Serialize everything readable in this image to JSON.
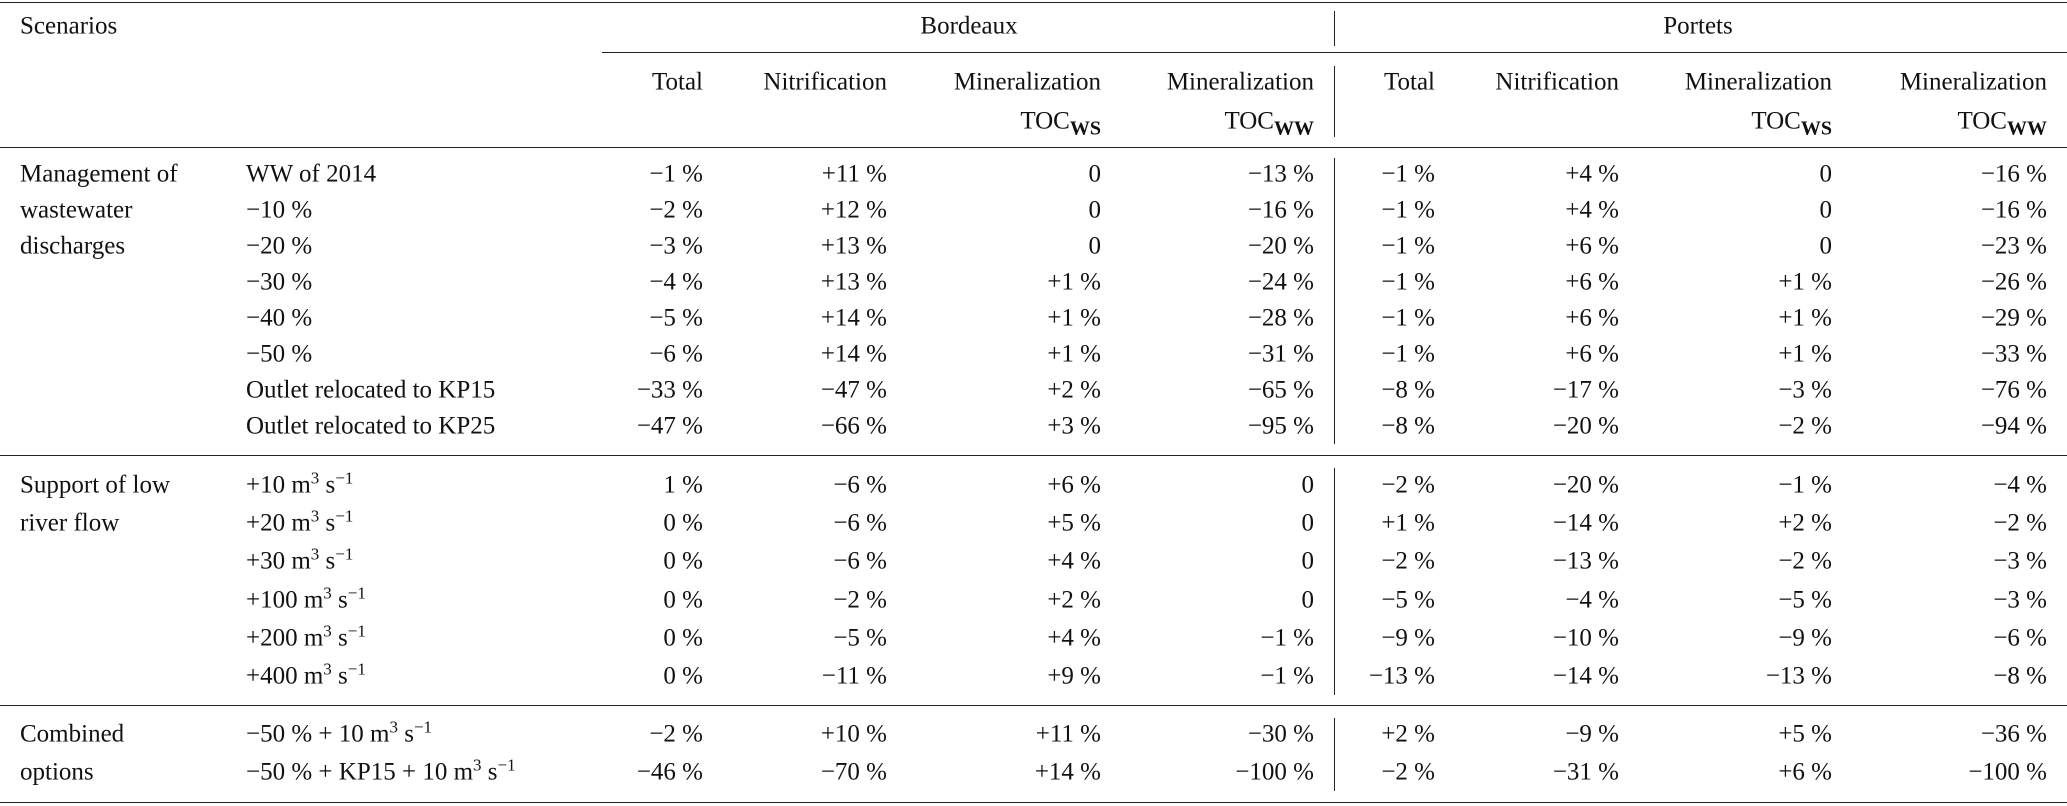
{
  "header": {
    "scenarios": "Scenarios",
    "groups": [
      "Bordeaux",
      "Portets"
    ],
    "columns": [
      {
        "line1": "Total"
      },
      {
        "line1": "Nitrification"
      },
      {
        "line1": "Mineralization",
        "line2": "TOC",
        "sub": "WS"
      },
      {
        "line1": "Mineralization",
        "line2": "TOC",
        "sub": "WW"
      }
    ]
  },
  "sections": [
    {
      "label": [
        "Management of",
        "wastewater",
        "discharges"
      ],
      "rows": [
        {
          "scenario": [
            {
              "t": "WW of 2014"
            }
          ],
          "bordeaux": [
            "−1 %",
            "+11 %",
            "0",
            "−13 %"
          ],
          "portets": [
            "−1 %",
            "+4 %",
            "0",
            "−16 %"
          ]
        },
        {
          "scenario": [
            {
              "t": "−10 %"
            }
          ],
          "bordeaux": [
            "−2 %",
            "+12 %",
            "0",
            "−16 %"
          ],
          "portets": [
            "−1 %",
            "+4 %",
            "0",
            "−16 %"
          ]
        },
        {
          "scenario": [
            {
              "t": "−20 %"
            }
          ],
          "bordeaux": [
            "−3 %",
            "+13 %",
            "0",
            "−20 %"
          ],
          "portets": [
            "−1 %",
            "+6 %",
            "0",
            "−23 %"
          ]
        },
        {
          "scenario": [
            {
              "t": "−30 %"
            }
          ],
          "bordeaux": [
            "−4 %",
            "+13 %",
            "+1 %",
            "−24 %"
          ],
          "portets": [
            "−1 %",
            "+6 %",
            "+1 %",
            "−26 %"
          ]
        },
        {
          "scenario": [
            {
              "t": "−40 %"
            }
          ],
          "bordeaux": [
            "−5 %",
            "+14 %",
            "+1 %",
            "−28 %"
          ],
          "portets": [
            "−1 %",
            "+6 %",
            "+1 %",
            "−29 %"
          ]
        },
        {
          "scenario": [
            {
              "t": "−50 %"
            }
          ],
          "bordeaux": [
            "−6 %",
            "+14 %",
            "+1 %",
            "−31 %"
          ],
          "portets": [
            "−1 %",
            "+6 %",
            "+1 %",
            "−33 %"
          ]
        },
        {
          "scenario": [
            {
              "t": "Outlet relocated to KP15"
            }
          ],
          "bordeaux": [
            "−33 %",
            "−47 %",
            "+2 %",
            "−65 %"
          ],
          "portets": [
            "−8 %",
            "−17 %",
            "−3 %",
            "−76 %"
          ]
        },
        {
          "scenario": [
            {
              "t": "Outlet relocated to KP25"
            }
          ],
          "bordeaux": [
            "−47 %",
            "−66 %",
            "+3 %",
            "−95 %"
          ],
          "portets": [
            "−8 %",
            "−20 %",
            "−2 %",
            "−94 %"
          ]
        }
      ]
    },
    {
      "label": [
        "Support of low",
        "river flow"
      ],
      "rows": [
        {
          "scenario": [
            {
              "t": "+10 m"
            },
            {
              "sup": "3"
            },
            {
              "t": " s"
            },
            {
              "sup": "−1"
            }
          ],
          "bordeaux": [
            "1 %",
            "−6 %",
            "+6 %",
            "0"
          ],
          "portets": [
            "−2 %",
            "−20 %",
            "−1 %",
            "−4 %"
          ]
        },
        {
          "scenario": [
            {
              "t": "+20 m"
            },
            {
              "sup": "3"
            },
            {
              "t": " s"
            },
            {
              "sup": "−1"
            }
          ],
          "bordeaux": [
            "0 %",
            "−6 %",
            "+5 %",
            "0"
          ],
          "portets": [
            "+1 %",
            "−14 %",
            "+2 %",
            "−2 %"
          ]
        },
        {
          "scenario": [
            {
              "t": "+30 m"
            },
            {
              "sup": "3"
            },
            {
              "t": " s"
            },
            {
              "sup": "−1"
            }
          ],
          "bordeaux": [
            "0 %",
            "−6 %",
            "+4 %",
            "0"
          ],
          "portets": [
            "−2 %",
            "−13 %",
            "−2 %",
            "−3 %"
          ]
        },
        {
          "scenario": [
            {
              "t": "+100 m"
            },
            {
              "sup": "3"
            },
            {
              "t": " s"
            },
            {
              "sup": "−1"
            }
          ],
          "bordeaux": [
            "0 %",
            "−2 %",
            "+2 %",
            "0"
          ],
          "portets": [
            "−5 %",
            "−4 %",
            "−5 %",
            "−3 %"
          ]
        },
        {
          "scenario": [
            {
              "t": "+200 m"
            },
            {
              "sup": "3"
            },
            {
              "t": " s"
            },
            {
              "sup": "−1"
            }
          ],
          "bordeaux": [
            "0 %",
            "−5 %",
            "+4 %",
            "−1 %"
          ],
          "portets": [
            "−9 %",
            "−10 %",
            "−9 %",
            "−6 %"
          ]
        },
        {
          "scenario": [
            {
              "t": "+400 m"
            },
            {
              "sup": "3"
            },
            {
              "t": " s"
            },
            {
              "sup": "−1"
            }
          ],
          "bordeaux": [
            "0 %",
            "−11 %",
            "+9 %",
            "−1 %"
          ],
          "portets": [
            "−13 %",
            "−14 %",
            "−13 %",
            "−8 %"
          ]
        }
      ]
    },
    {
      "label": [
        "Combined",
        "options"
      ],
      "rows": [
        {
          "scenario": [
            {
              "t": "−50 % + 10 m"
            },
            {
              "sup": "3"
            },
            {
              "t": " s"
            },
            {
              "sup": "−1"
            }
          ],
          "bordeaux": [
            "−2 %",
            "+10 %",
            "+11 %",
            "−30 %"
          ],
          "portets": [
            "+2 %",
            "−9 %",
            "+5 %",
            "−36 %"
          ]
        },
        {
          "scenario": [
            {
              "t": "−50 % + KP15 + 10 m"
            },
            {
              "sup": "3"
            },
            {
              "t": " s"
            },
            {
              "sup": "−1"
            }
          ],
          "bordeaux": [
            "−46 %",
            "−70 %",
            "+14 %",
            "−100 %"
          ],
          "portets": [
            "−2 %",
            "−31 %",
            "+6 %",
            "−100 %"
          ]
        }
      ]
    }
  ]
}
